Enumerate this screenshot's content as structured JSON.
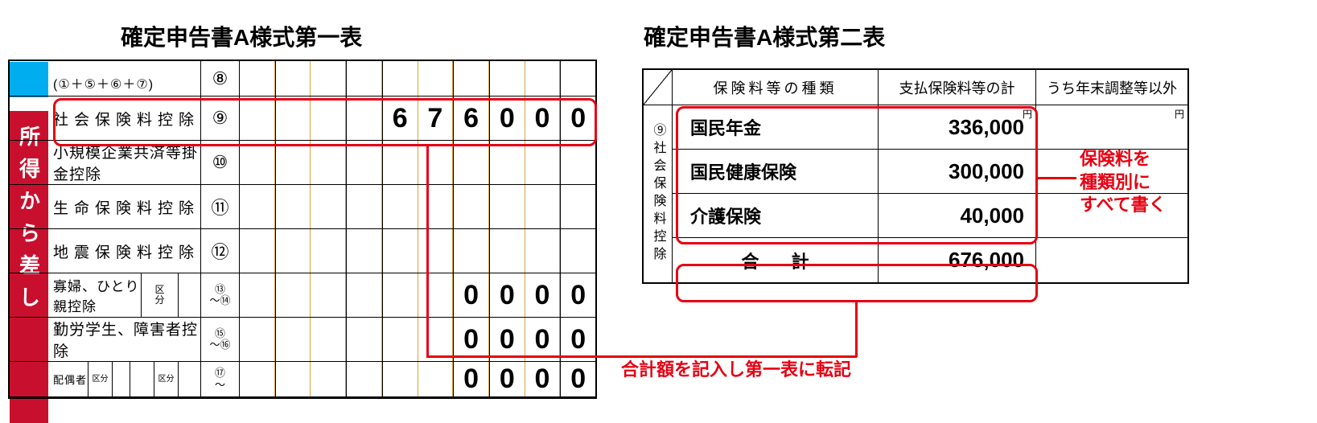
{
  "titles": {
    "left": "確定申告書A様式第一表",
    "right": "確定申告書A様式第二表"
  },
  "vertical_label": "所得から差し",
  "left_rows": [
    {
      "label": "(①＋⑤＋⑥＋⑦)",
      "num": "⑧",
      "cells": [
        "",
        "",
        "",
        "",
        "",
        "",
        "",
        "",
        "",
        ""
      ],
      "short": true
    },
    {
      "label": "社会保険料控除",
      "num": "⑨",
      "cells": [
        "",
        "",
        "",
        "",
        "6",
        "7",
        "6",
        "0",
        "0",
        "0"
      ],
      "spread": "spread2"
    },
    {
      "label": "小規模企業共済等掛金控除",
      "num": "⑩",
      "cells": [
        "",
        "",
        "",
        "",
        "",
        "",
        "",
        "",
        "",
        ""
      ]
    },
    {
      "label": "生命保険料控除",
      "num": "⑪",
      "cells": [
        "",
        "",
        "",
        "",
        "",
        "",
        "",
        "",
        "",
        ""
      ],
      "spread": "spread2"
    },
    {
      "label": "地震保険料控除",
      "num": "⑫",
      "cells": [
        "",
        "",
        "",
        "",
        "",
        "",
        "",
        "",
        "",
        ""
      ],
      "spread": "spread2"
    },
    {
      "label": "寡婦、ひとり親控除",
      "num_range": "⑬～⑭",
      "cells": [
        "",
        "",
        "",
        "",
        "",
        "",
        "0",
        "0",
        "0",
        "0"
      ],
      "has_kubun": true
    },
    {
      "label": "勤労学生、障害者控除",
      "num_range": "⑮～⑯",
      "cells": [
        "",
        "",
        "",
        "",
        "",
        "",
        "0",
        "0",
        "0",
        "0"
      ]
    },
    {
      "label": "配偶者",
      "num_range": "⑰～",
      "cells": [
        "",
        "",
        "",
        "",
        "",
        "",
        "0",
        "0",
        "0",
        "0"
      ],
      "has_kubun2": true,
      "short": true
    }
  ],
  "right_headers": [
    "保険料等の種類",
    "支払保険料等の計",
    "うち年末調整等以外"
  ],
  "right_vert_label": "⑨社会保険料控除",
  "right_vert_num": "⑨",
  "right_rows": [
    {
      "name": "国民年金",
      "amount": "336,000"
    },
    {
      "name": "国民健康保険",
      "amount": "300,000"
    },
    {
      "name": "介護保険",
      "amount": "40,000"
    }
  ],
  "right_total": {
    "label": "合計",
    "amount": "676,000"
  },
  "annotations": {
    "anno1": "保険料を\n種類別に\nすべて書く",
    "anno2": "合計額を記入し第一表に転記"
  },
  "colors": {
    "red": "#e60012",
    "vert_bg": "#c8102e",
    "blue": "#00aeef",
    "cell_border": "#d9a441"
  }
}
